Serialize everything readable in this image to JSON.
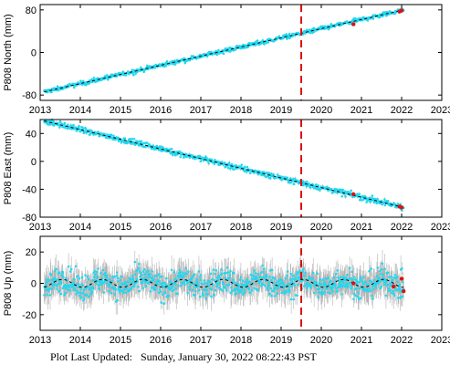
{
  "footer": {
    "label": "Plot Last Updated:",
    "timestamp": "Sunday, January 30, 2022 08:22:43 PST"
  },
  "colors": {
    "observations": "#22d8f0",
    "errorbars": "#b4b4b4",
    "model": "#000000",
    "event_line": "#dd1111",
    "recent": "#dd1111"
  },
  "chart_data": [
    {
      "type": "scatter",
      "id": "north",
      "ylabel": "P808 North (mm)",
      "xlim": [
        2013,
        2023
      ],
      "ylim": [
        -90,
        90
      ],
      "xticks": [
        2013,
        2014,
        2015,
        2016,
        2017,
        2018,
        2019,
        2020,
        2021,
        2022,
        2023
      ],
      "yticks": [
        -80,
        0,
        80
      ],
      "grid": false,
      "event_line_x": 2019.5,
      "series": [
        {
          "role": "observations",
          "x_range": [
            2013.1,
            2022.05
          ],
          "y_range": [
            -74,
            80
          ],
          "scatter": 3
        },
        {
          "role": "model",
          "x": [
            2013.1,
            2022.05
          ],
          "y": [
            -74,
            80
          ]
        },
        {
          "role": "recent",
          "x": [
            2020.8,
            2021.95,
            2022.0
          ],
          "y": [
            53,
            77,
            79
          ]
        }
      ]
    },
    {
      "type": "scatter",
      "id": "east",
      "ylabel": "P808 East (mm)",
      "xlim": [
        2013,
        2023
      ],
      "ylim": [
        -80,
        60
      ],
      "xticks": [
        2013,
        2014,
        2015,
        2016,
        2017,
        2018,
        2019,
        2020,
        2021,
        2022,
        2023
      ],
      "yticks": [
        -80,
        -40,
        0,
        40
      ],
      "grid": false,
      "event_line_x": 2019.5,
      "series": [
        {
          "role": "observations",
          "x_range": [
            2013.1,
            2022.05
          ],
          "y_range": [
            58,
            -66
          ],
          "scatter": 3
        },
        {
          "role": "model",
          "x": [
            2013.1,
            2022.05
          ],
          "y": [
            58,
            -66
          ]
        },
        {
          "role": "recent",
          "x": [
            2020.8,
            2021.95,
            2022.0
          ],
          "y": [
            -47,
            -65,
            -66
          ]
        }
      ]
    },
    {
      "type": "scatter",
      "id": "up",
      "ylabel": "P808 Up (mm)",
      "xlim": [
        2013,
        2023
      ],
      "ylim": [
        -30,
        30
      ],
      "xticks": [
        2013,
        2014,
        2015,
        2016,
        2017,
        2018,
        2019,
        2020,
        2021,
        2022,
        2023
      ],
      "yticks": [
        -20,
        0,
        20
      ],
      "grid": false,
      "event_line_x": 2019.5,
      "series": [
        {
          "role": "observations",
          "x_range": [
            2013.1,
            2022.05
          ],
          "mean": 0,
          "scatter": 6
        },
        {
          "role": "model",
          "x_range": [
            2013.1,
            2022.05
          ],
          "seasonal_amplitude": 2.5
        },
        {
          "role": "recent",
          "x": [
            2020.8,
            2021.8,
            2022.0,
            2022.05
          ],
          "y": [
            0,
            -2,
            3,
            -5
          ]
        }
      ]
    }
  ]
}
